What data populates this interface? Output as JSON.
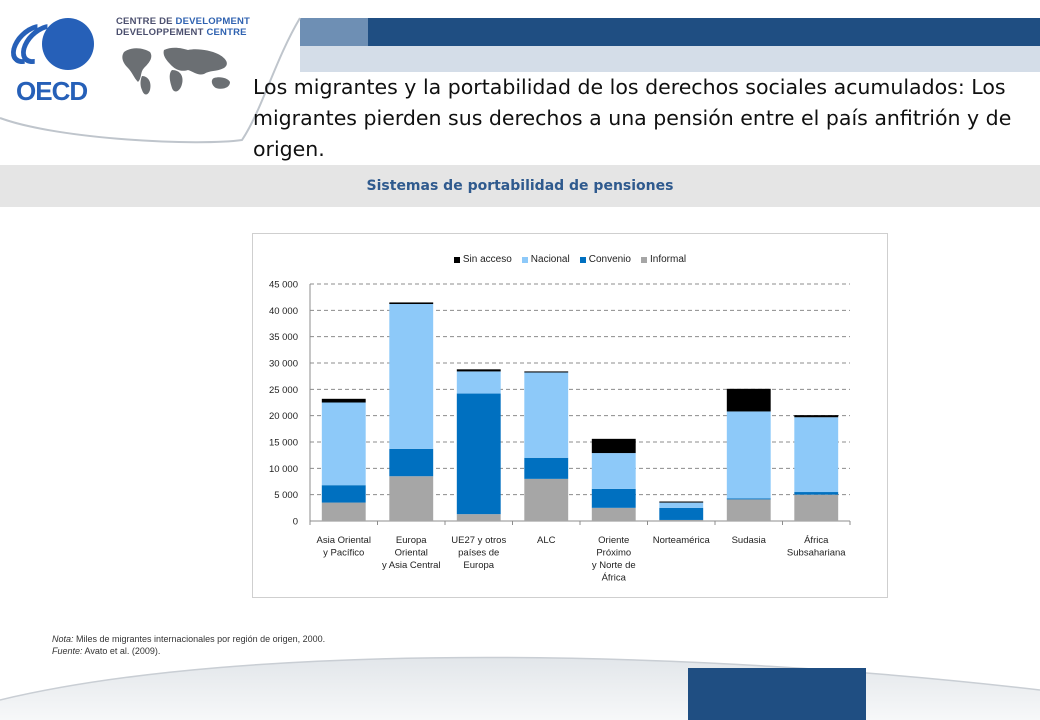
{
  "header": {
    "logo_text": "OECD",
    "dev_centre_line1a": "CENTRE DE ",
    "dev_centre_line1b": "DEVELOPMENT",
    "dev_centre_line2a": "DEVELOPPEMENT ",
    "dev_centre_line2b": "CENTRE"
  },
  "title": "Los migrantes y la portabilidad de los derechos sociales acumulados: Los migrantes pierden sus derechos a una pensión entre el país anfitrión y  de origen.",
  "subtitle": "Sistemas de portabilidad de pensiones",
  "notes": {
    "note_label": "Nota:",
    "note_text": " Miles de migrantes internacionales por región de origen, 2000.",
    "source_label": "Fuente:",
    "source_text": " Avato et al. (2009)."
  },
  "colors": {
    "header_bar_dark": "#1f4e82",
    "header_bar_light": "#d4dde8",
    "band": "#e5e5e5",
    "footer_block": "#1f4e82"
  },
  "chart_data": {
    "type": "bar",
    "stacked": true,
    "categories": [
      [
        "Asia Oriental",
        "y Pacífico"
      ],
      [
        "Europa",
        "Oriental",
        "y Asia Central"
      ],
      [
        "UE27 y otros",
        "países de",
        "Europa"
      ],
      [
        "ALC"
      ],
      [
        "Oriente",
        "Próximo",
        "y Norte de",
        "África"
      ],
      [
        "Norteamérica"
      ],
      [
        "Sudasia"
      ],
      [
        "África",
        "Subsahariana"
      ]
    ],
    "series": [
      {
        "name": "Informal",
        "color": "#a6a6a6",
        "values": [
          3500,
          8500,
          1300,
          8000,
          2500,
          200,
          4100,
          5000
        ]
      },
      {
        "name": "Convenio",
        "color": "#0070c0",
        "values": [
          3300,
          5200,
          22900,
          4000,
          3600,
          2300,
          200,
          500
        ]
      },
      {
        "name": "Nacional",
        "color": "#8dc9f9",
        "values": [
          15700,
          27500,
          4200,
          16200,
          6800,
          1000,
          16500,
          14200
        ]
      },
      {
        "name": "Sin acceso",
        "color": "#000000",
        "values": [
          700,
          300,
          400,
          200,
          2700,
          200,
          4300,
          400
        ]
      }
    ],
    "legend_order": [
      "Sin acceso",
      "Nacional",
      "Convenio",
      "Informal"
    ],
    "ylim": [
      0,
      45000
    ],
    "yticks": [
      0,
      5000,
      10000,
      15000,
      20000,
      25000,
      30000,
      35000,
      40000,
      45000
    ],
    "ytick_labels": [
      "0",
      "5 000",
      "10 000",
      "15 000",
      "20 000",
      "25 000",
      "30 000",
      "35 000",
      "40 000",
      "45 000"
    ],
    "grid": true,
    "legend_position": "top-center"
  }
}
